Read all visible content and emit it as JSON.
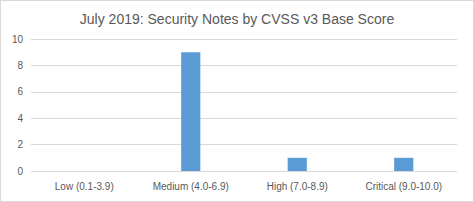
{
  "chart_data": {
    "type": "bar",
    "title": "July 2019: Security Notes by CVSS v3 Base Score",
    "categories": [
      "Low (0.1-3.9)",
      "Medium (4.0-6.9)",
      "High (7.0-8.9)",
      "Critical (9.0-10.0)"
    ],
    "values": [
      0,
      9,
      1,
      1
    ],
    "color": "#5b9bd5",
    "ylim": [
      0,
      10
    ],
    "yticks": [
      0,
      2,
      4,
      6,
      8,
      10
    ],
    "grid": true
  }
}
